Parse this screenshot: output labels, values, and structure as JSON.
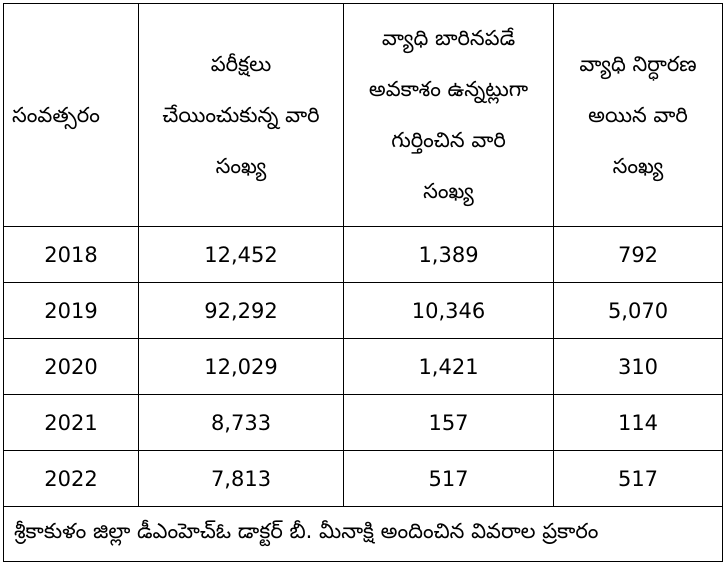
{
  "table": {
    "header": [
      [
        "సంవత్సరం"
      ],
      [
        "పరీక్షలు",
        "చేయించుకున్న వారి",
        "సంఖ్య"
      ],
      [
        "వ్యాధి బారినపడే",
        "అవకాశం ఉన్నట్లుగా",
        "గుర్తించిన వారి",
        "సంఖ్య"
      ],
      [
        "వ్యాధి నిర్ధారణ",
        "అయిన వారి",
        "సంఖ్య"
      ]
    ],
    "rows": [
      [
        "2018",
        "12,452",
        "1,389",
        "792"
      ],
      [
        "2019",
        "92,292",
        "10,346",
        "5,070"
      ],
      [
        "2020",
        "12,029",
        "1,421",
        "310"
      ],
      [
        "2021",
        "8,733",
        "157",
        "114"
      ],
      [
        "2022",
        "7,813",
        "517",
        "517"
      ]
    ],
    "footer": "శ్రీకాకుళం జిల్లా డీఎంహెచ్ఓ డాక్టర్ బీ. మీనాక్షి అందించిన వివరాల ప్రకారం"
  }
}
